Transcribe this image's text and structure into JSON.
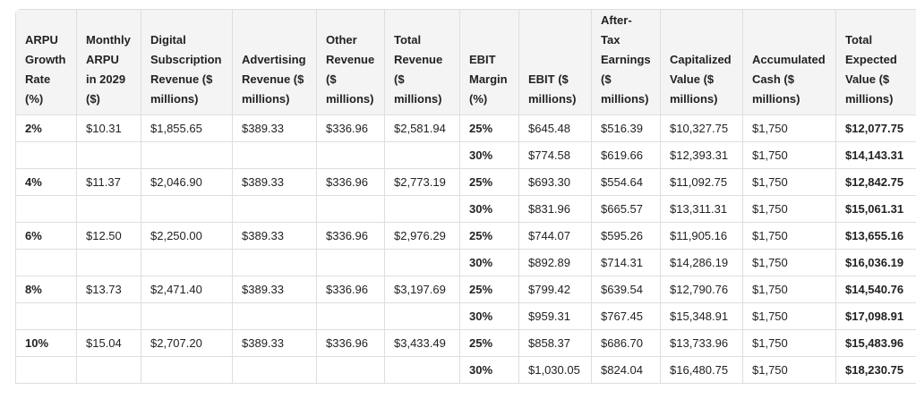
{
  "table": {
    "headers": [
      "ARPU Growth Rate (%)",
      "Monthly ARPU in 2029 ($)",
      "Digital Subscription Revenue ($ millions)",
      "Advertising Revenue ($ millions)",
      "Other Revenue ($ millions)",
      "Total Revenue ($ millions)",
      "EBIT Margin (%)",
      "EBIT ($ millions)",
      "After-Tax Earnings ($ millions)",
      "Capitalized Value ($ millions)",
      "Accumulated Cash ($ millions)",
      "Total Expected Value ($ millions)"
    ],
    "rows": [
      [
        "2%",
        "$10.31",
        "$1,855.65",
        "$389.33",
        "$336.96",
        "$2,581.94",
        "25%",
        "$645.48",
        "$516.39",
        "$10,327.75",
        "$1,750",
        "$12,077.75"
      ],
      [
        null,
        null,
        null,
        null,
        null,
        null,
        "30%",
        "$774.58",
        "$619.66",
        "$12,393.31",
        "$1,750",
        "$14,143.31"
      ],
      [
        "4%",
        "$11.37",
        "$2,046.90",
        "$389.33",
        "$336.96",
        "$2,773.19",
        "25%",
        "$693.30",
        "$554.64",
        "$11,092.75",
        "$1,750",
        "$12,842.75"
      ],
      [
        null,
        null,
        null,
        null,
        null,
        null,
        "30%",
        "$831.96",
        "$665.57",
        "$13,311.31",
        "$1,750",
        "$15,061.31"
      ],
      [
        "6%",
        "$12.50",
        "$2,250.00",
        "$389.33",
        "$336.96",
        "$2,976.29",
        "25%",
        "$744.07",
        "$595.26",
        "$11,905.16",
        "$1,750",
        "$13,655.16"
      ],
      [
        null,
        null,
        null,
        null,
        null,
        null,
        "30%",
        "$892.89",
        "$714.31",
        "$14,286.19",
        "$1,750",
        "$16,036.19"
      ],
      [
        "8%",
        "$13.73",
        "$2,471.40",
        "$389.33",
        "$336.96",
        "$3,197.69",
        "25%",
        "$799.42",
        "$639.54",
        "$12,790.76",
        "$1,750",
        "$14,540.76"
      ],
      [
        null,
        null,
        null,
        null,
        null,
        null,
        "30%",
        "$959.31",
        "$767.45",
        "$15,348.91",
        "$1,750",
        "$17,098.91"
      ],
      [
        "10%",
        "$15.04",
        "$2,707.20",
        "$389.33",
        "$336.96",
        "$3,433.49",
        "25%",
        "$858.37",
        "$686.70",
        "$13,733.96",
        "$1,750",
        "$15,483.96"
      ],
      [
        null,
        null,
        null,
        null,
        null,
        null,
        "30%",
        "$1,030.05",
        "$824.04",
        "$16,480.75",
        "$1,750",
        "$18,230.75"
      ]
    ]
  }
}
